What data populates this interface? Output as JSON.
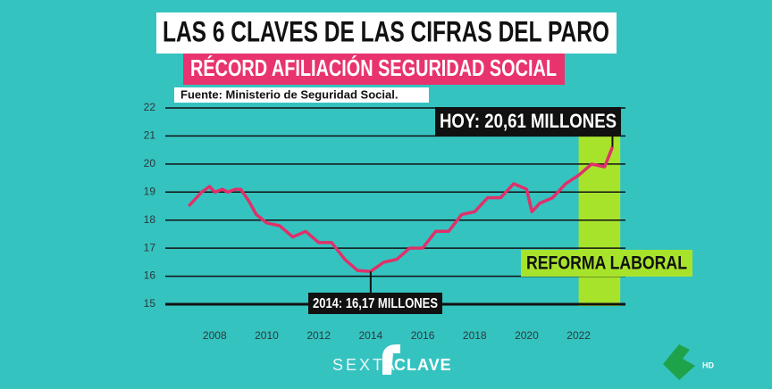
{
  "chart_data": {
    "type": "line",
    "title": "LAS 6 CLAVES DE LAS CIFRAS DEL PARO",
    "subtitle": "RÉCORD AFILIACIÓN SEGURIDAD SOCIAL",
    "source": "Fuente: Ministerio de Seguridad Social.",
    "x": [
      2007.0,
      2007.5,
      2007.8,
      2008.0,
      2008.3,
      2008.5,
      2008.8,
      2009.0,
      2009.3,
      2009.6,
      2010.0,
      2010.5,
      2011.0,
      2011.5,
      2012.0,
      2012.5,
      2013.0,
      2013.5,
      2014.0,
      2014.5,
      2015.0,
      2015.5,
      2016.0,
      2016.5,
      2017.0,
      2017.5,
      2018.0,
      2018.5,
      2019.0,
      2019.5,
      2020.0,
      2020.2,
      2020.5,
      2021.0,
      2021.5,
      2022.0,
      2022.5,
      2023.0,
      2023.3
    ],
    "values": [
      18.5,
      19.0,
      19.2,
      19.0,
      19.1,
      19.0,
      19.1,
      19.1,
      18.7,
      18.2,
      17.9,
      17.8,
      17.4,
      17.6,
      17.2,
      17.2,
      16.6,
      16.2,
      16.17,
      16.5,
      16.6,
      17.0,
      17.0,
      17.6,
      17.6,
      18.2,
      18.3,
      18.8,
      18.8,
      19.3,
      19.1,
      18.3,
      18.6,
      18.8,
      19.3,
      19.6,
      20.0,
      19.9,
      20.61
    ],
    "color": "#e0306a",
    "xlim": [
      2006.1,
      2023.8
    ],
    "xticks": [
      2008,
      2010,
      2012,
      2014,
      2016,
      2018,
      2020,
      2022
    ],
    "ylim": [
      15,
      22
    ],
    "yticks": [
      15,
      16,
      17,
      18,
      19,
      20,
      21,
      22
    ],
    "grid": true,
    "band": {
      "from": 2022,
      "to": 2023.6,
      "label": "REFORMA LABORAL",
      "color": "#a8e32c"
    },
    "annotations": [
      {
        "text": "HOY: 20,61 MILLONES",
        "x": 2023.3,
        "y": 20.61
      },
      {
        "text": "2014: 16,17 MILLONES",
        "x": 2014,
        "y": 16.17
      }
    ],
    "branding": [
      "SEXTA",
      "CLAVE",
      "HD"
    ]
  }
}
